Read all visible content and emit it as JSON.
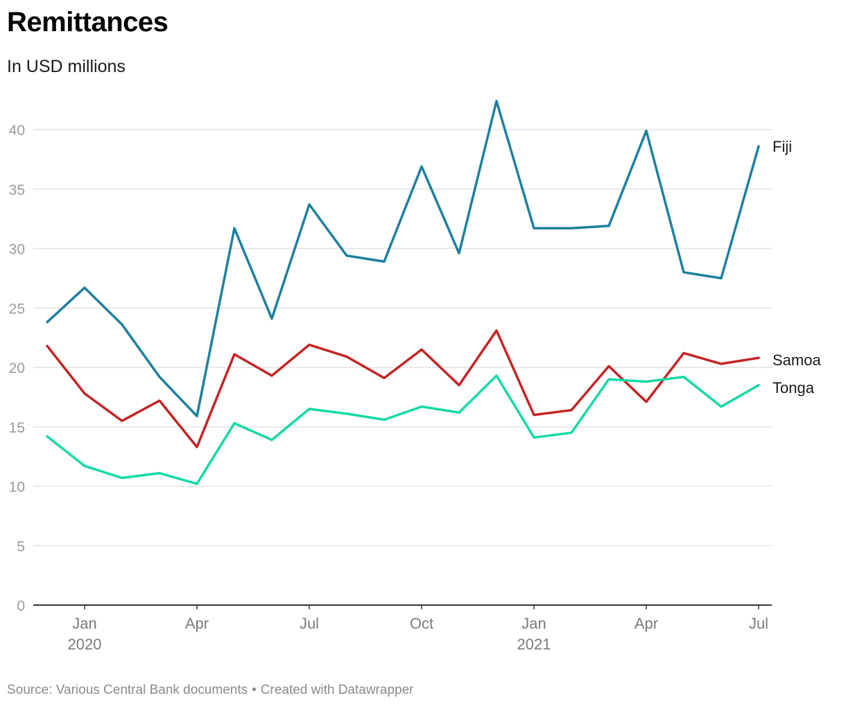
{
  "title": "Remittances",
  "subtitle": "In USD millions",
  "footer": {
    "source": "Source: Various Central Bank documents",
    "separator": "•",
    "credit": "Created with Datawrapper"
  },
  "chart_data": {
    "type": "line",
    "title": "Remittances",
    "subtitle": "In USD millions",
    "x": [
      "2019-12",
      "2020-01",
      "2020-02",
      "2020-03",
      "2020-04",
      "2020-05",
      "2020-06",
      "2020-07",
      "2020-08",
      "2020-09",
      "2020-10",
      "2020-11",
      "2020-12",
      "2021-01",
      "2021-02",
      "2021-03",
      "2021-04",
      "2021-05",
      "2021-06",
      "2021-07"
    ],
    "x_ticks": [
      {
        "x": "2020-01",
        "label": "Jan",
        "sublabel": "2020"
      },
      {
        "x": "2020-04",
        "label": "Apr",
        "sublabel": ""
      },
      {
        "x": "2020-07",
        "label": "Jul",
        "sublabel": ""
      },
      {
        "x": "2020-10",
        "label": "Oct",
        "sublabel": ""
      },
      {
        "x": "2021-01",
        "label": "Jan",
        "sublabel": "2021"
      },
      {
        "x": "2021-04",
        "label": "Apr",
        "sublabel": ""
      },
      {
        "x": "2021-07",
        "label": "Jul",
        "sublabel": ""
      }
    ],
    "y_ticks": [
      0,
      5,
      10,
      15,
      20,
      25,
      30,
      35,
      40
    ],
    "ylim": [
      0,
      43
    ],
    "grid": true,
    "series": [
      {
        "name": "Fiji",
        "color": "#1d7fa0",
        "values": [
          23.8,
          26.7,
          23.6,
          19.2,
          15.9,
          31.7,
          24.1,
          33.7,
          29.4,
          28.9,
          36.9,
          29.6,
          42.4,
          31.7,
          31.7,
          31.9,
          39.9,
          28.0,
          27.5,
          38.6
        ]
      },
      {
        "name": "Samoa",
        "color": "#c52222",
        "values": [
          21.8,
          17.8,
          15.5,
          17.2,
          13.3,
          21.1,
          19.3,
          21.9,
          20.9,
          19.1,
          21.5,
          18.5,
          23.1,
          16.0,
          16.4,
          20.1,
          17.1,
          21.2,
          20.3,
          20.8
        ]
      },
      {
        "name": "Tonga",
        "color": "#13d9a6",
        "values": [
          14.2,
          11.7,
          10.7,
          11.1,
          10.2,
          15.3,
          13.9,
          16.5,
          16.1,
          15.6,
          16.7,
          16.2,
          19.3,
          14.1,
          14.5,
          19.0,
          18.8,
          19.2,
          16.7,
          18.5
        ]
      }
    ]
  }
}
